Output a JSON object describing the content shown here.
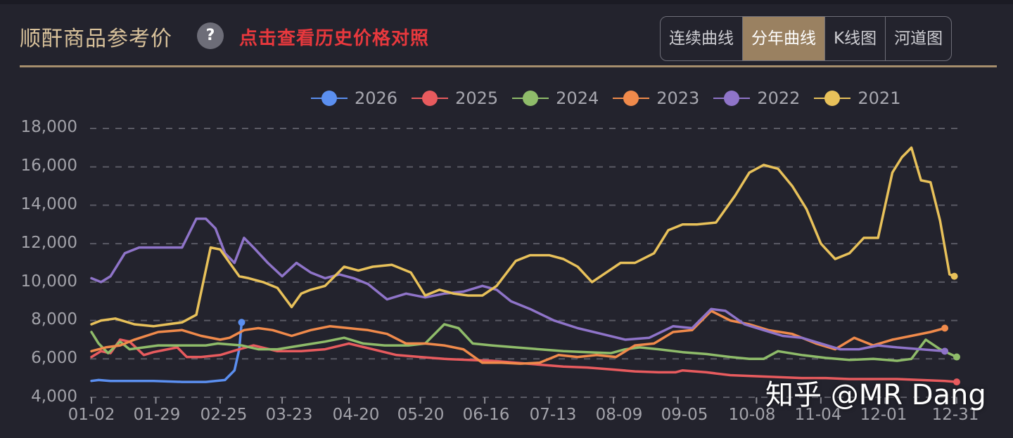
{
  "header": {
    "title": "顺酐商品参考价",
    "help_icon": "?",
    "history_link": "点击查看历史价格对照"
  },
  "tabs": [
    {
      "label": "连续曲线",
      "active": false
    },
    {
      "label": "分年曲线",
      "active": true
    },
    {
      "label": "K线图",
      "active": false
    },
    {
      "label": "河道图",
      "active": false
    }
  ],
  "watermark": "知乎 @MR Dang",
  "colors": {
    "background": "#23232d",
    "accent": "#9a8161",
    "title": "#d9c29b",
    "link": "#e8383d",
    "grid": "#5a5a64"
  },
  "chart_data": {
    "type": "line",
    "title": "顺酐商品参考价",
    "xlabel": "",
    "ylabel": "",
    "ylim": [
      4000,
      18000
    ],
    "grid": true,
    "legend_position": "top",
    "y_ticks": [
      "18,000",
      "16,000",
      "14,000",
      "12,000",
      "10,000",
      "8,000",
      "6,000",
      "4,000"
    ],
    "x_ticks": [
      "01-02",
      "01-29",
      "02-25",
      "03-23",
      "04-20",
      "05-20",
      "06-16",
      "07-13",
      "08-09",
      "09-05",
      "10-08",
      "11-04",
      "12-01",
      "12-31"
    ],
    "x_day_of_year": [
      2,
      29,
      56,
      82,
      110,
      140,
      167,
      194,
      221,
      248,
      281,
      308,
      335,
      365
    ],
    "series": [
      {
        "name": "2026",
        "color": "#5b8ff0",
        "x": [
          2,
          5,
          10,
          20,
          28,
          40,
          50,
          58,
          62,
          64,
          65
        ],
        "values": [
          4850,
          4900,
          4850,
          4850,
          4850,
          4800,
          4800,
          4900,
          5400,
          6500,
          7900
        ]
      },
      {
        "name": "2025",
        "color": "#e85b5e",
        "x": [
          2,
          6,
          10,
          14,
          18,
          24,
          28,
          34,
          38,
          42,
          48,
          56,
          64,
          70,
          80,
          90,
          100,
          110,
          120,
          130,
          140,
          150,
          160,
          170,
          180,
          190,
          200,
          210,
          220,
          230,
          240,
          247,
          250,
          260,
          270,
          280,
          290,
          300,
          310,
          320,
          330,
          340,
          350,
          360,
          365
        ],
        "values": [
          6100,
          6400,
          6300,
          7000,
          6900,
          6200,
          6350,
          6500,
          6600,
          6100,
          6100,
          6200,
          6500,
          6700,
          6400,
          6400,
          6500,
          6800,
          6500,
          6200,
          6100,
          6000,
          5950,
          5900,
          5800,
          5700,
          5600,
          5550,
          5450,
          5350,
          5300,
          5300,
          5400,
          5300,
          5150,
          5100,
          5050,
          5000,
          5000,
          4950,
          4950,
          4950,
          4900,
          4850,
          4800
        ]
      },
      {
        "name": "2024",
        "color": "#8fbc6a",
        "x": [
          2,
          5,
          9,
          14,
          18,
          24,
          30,
          40,
          50,
          55,
          65,
          72,
          80,
          90,
          100,
          108,
          116,
          125,
          135,
          142,
          150,
          156,
          162,
          170,
          180,
          190,
          200,
          210,
          220,
          226,
          232,
          240,
          250,
          260,
          270,
          278,
          284,
          290,
          300,
          310,
          320,
          330,
          340,
          346,
          352,
          358,
          365
        ],
        "values": [
          7400,
          6800,
          6300,
          6900,
          6500,
          6600,
          6700,
          6700,
          6700,
          6800,
          6700,
          6500,
          6500,
          6700,
          6900,
          7100,
          6800,
          6700,
          6700,
          6800,
          7800,
          7600,
          6800,
          6700,
          6600,
          6500,
          6400,
          6350,
          6300,
          6500,
          6600,
          6500,
          6350,
          6250,
          6100,
          6000,
          6000,
          6400,
          6200,
          6050,
          5950,
          6000,
          5900,
          6000,
          7000,
          6500,
          6100
        ]
      },
      {
        "name": "2023",
        "color": "#f08a4b",
        "x": [
          2,
          8,
          14,
          20,
          30,
          40,
          48,
          56,
          60,
          66,
          72,
          78,
          86,
          94,
          102,
          110,
          118,
          126,
          134,
          142,
          150,
          158,
          166,
          174,
          182,
          190,
          198,
          206,
          214,
          222,
          230,
          238,
          246,
          254,
          262,
          270,
          278,
          286,
          296,
          306,
          314,
          322,
          330,
          338,
          346,
          354,
          360
        ],
        "values": [
          6400,
          6600,
          6700,
          7000,
          7400,
          7500,
          7200,
          7000,
          7100,
          7500,
          7600,
          7500,
          7200,
          7500,
          7700,
          7600,
          7500,
          7300,
          6800,
          6800,
          6700,
          6500,
          5800,
          5800,
          5750,
          5800,
          6200,
          6100,
          6200,
          6100,
          6700,
          6800,
          7400,
          7500,
          8500,
          8000,
          7800,
          7500,
          7300,
          6800,
          6500,
          7100,
          6700,
          7000,
          7200,
          7400,
          7600
        ]
      },
      {
        "name": "2022",
        "color": "#8f74c9",
        "x": [
          2,
          6,
          10,
          16,
          22,
          30,
          40,
          46,
          50,
          54,
          58,
          62,
          66,
          70,
          76,
          82,
          88,
          94,
          100,
          106,
          112,
          118,
          126,
          134,
          142,
          150,
          158,
          166,
          172,
          178,
          186,
          196,
          206,
          216,
          226,
          236,
          246,
          254,
          262,
          268,
          276,
          284,
          292,
          300,
          308,
          316,
          324,
          332,
          340,
          350,
          360
        ],
        "values": [
          10200,
          10000,
          10300,
          11500,
          11800,
          11800,
          11800,
          13300,
          13300,
          12800,
          11500,
          11000,
          12300,
          11800,
          11000,
          10300,
          11000,
          10500,
          10200,
          10400,
          10200,
          9900,
          9100,
          9400,
          9200,
          9400,
          9500,
          9800,
          9600,
          9000,
          8600,
          8000,
          7600,
          7300,
          7000,
          7100,
          7700,
          7600,
          8600,
          8500,
          7800,
          7500,
          7200,
          7100,
          6800,
          6500,
          6500,
          6700,
          6600,
          6500,
          6400
        ]
      },
      {
        "name": "2021",
        "color": "#e8c15a",
        "x": [
          2,
          6,
          12,
          20,
          28,
          34,
          40,
          46,
          52,
          56,
          60,
          64,
          68,
          74,
          80,
          86,
          90,
          94,
          100,
          108,
          114,
          120,
          128,
          136,
          142,
          148,
          154,
          160,
          166,
          172,
          180,
          186,
          194,
          200,
          206,
          212,
          218,
          224,
          230,
          238,
          244,
          250,
          256,
          264,
          272,
          278,
          284,
          290,
          296,
          302,
          308,
          314,
          320,
          326,
          332,
          338,
          342,
          346,
          350,
          354,
          358,
          362,
          364
        ],
        "values": [
          7800,
          8000,
          8100,
          7800,
          7700,
          7800,
          7900,
          8300,
          11800,
          11700,
          11000,
          10300,
          10200,
          10000,
          9700,
          8700,
          9400,
          9600,
          9800,
          10800,
          10600,
          10800,
          10900,
          10500,
          9300,
          9600,
          9400,
          9300,
          9300,
          9800,
          11100,
          11400,
          11400,
          11200,
          10800,
          10000,
          10500,
          11000,
          11000,
          11500,
          12700,
          13000,
          13000,
          13100,
          14500,
          15700,
          16100,
          15900,
          15000,
          13800,
          12000,
          11200,
          11500,
          12300,
          12300,
          15700,
          16500,
          17000,
          15300,
          15200,
          13200,
          10400,
          10300
        ]
      }
    ]
  }
}
